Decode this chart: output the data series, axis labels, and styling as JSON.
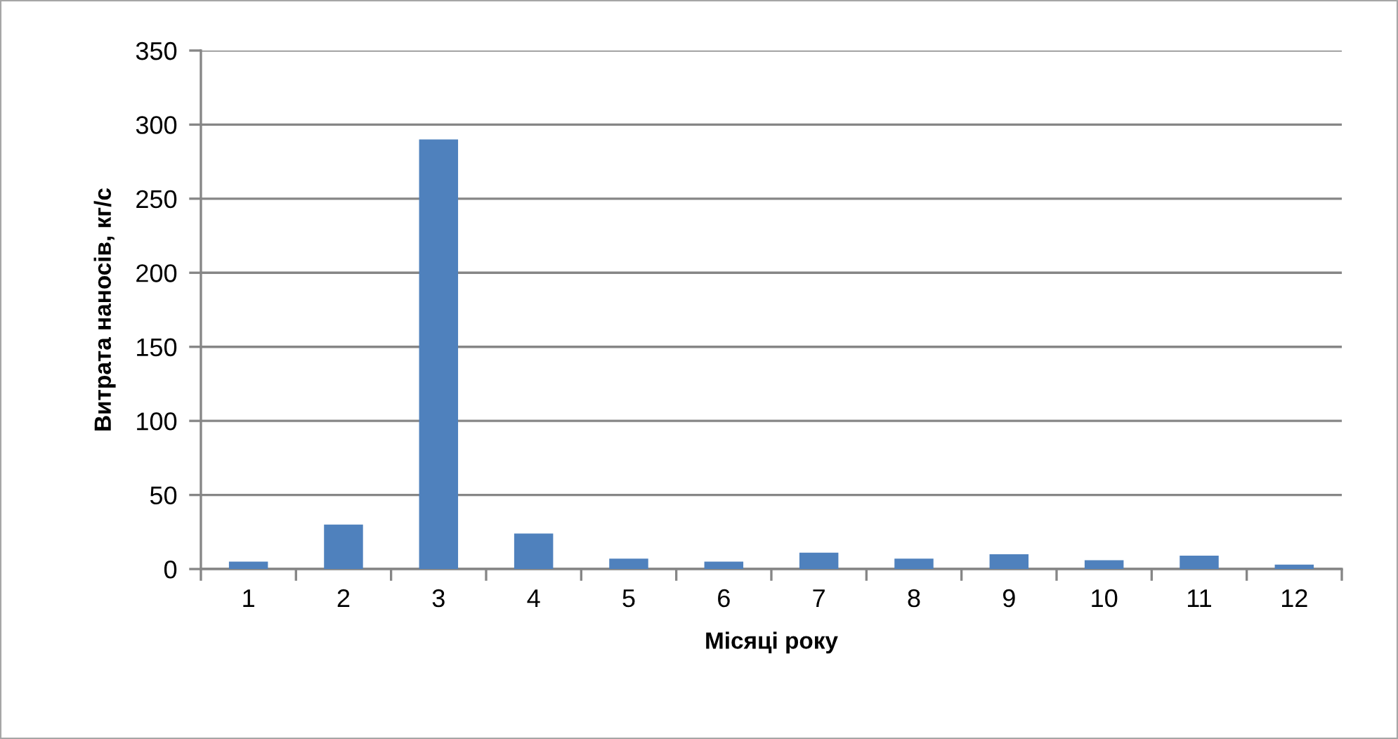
{
  "chart_data": {
    "type": "bar",
    "xlabel": "Місяці року",
    "ylabel": "Витрата наносів, кг/с",
    "categories": [
      "1",
      "2",
      "3",
      "4",
      "5",
      "6",
      "7",
      "8",
      "9",
      "10",
      "11",
      "12"
    ],
    "values": [
      5,
      30,
      290,
      24,
      7,
      5,
      11,
      7,
      10,
      6,
      9,
      3
    ],
    "color": "#4f81bd",
    "ylim": [
      0,
      350
    ],
    "yticks": [
      0,
      50,
      100,
      150,
      200,
      250,
      300,
      350
    ],
    "grid": "y",
    "legend": false
  }
}
